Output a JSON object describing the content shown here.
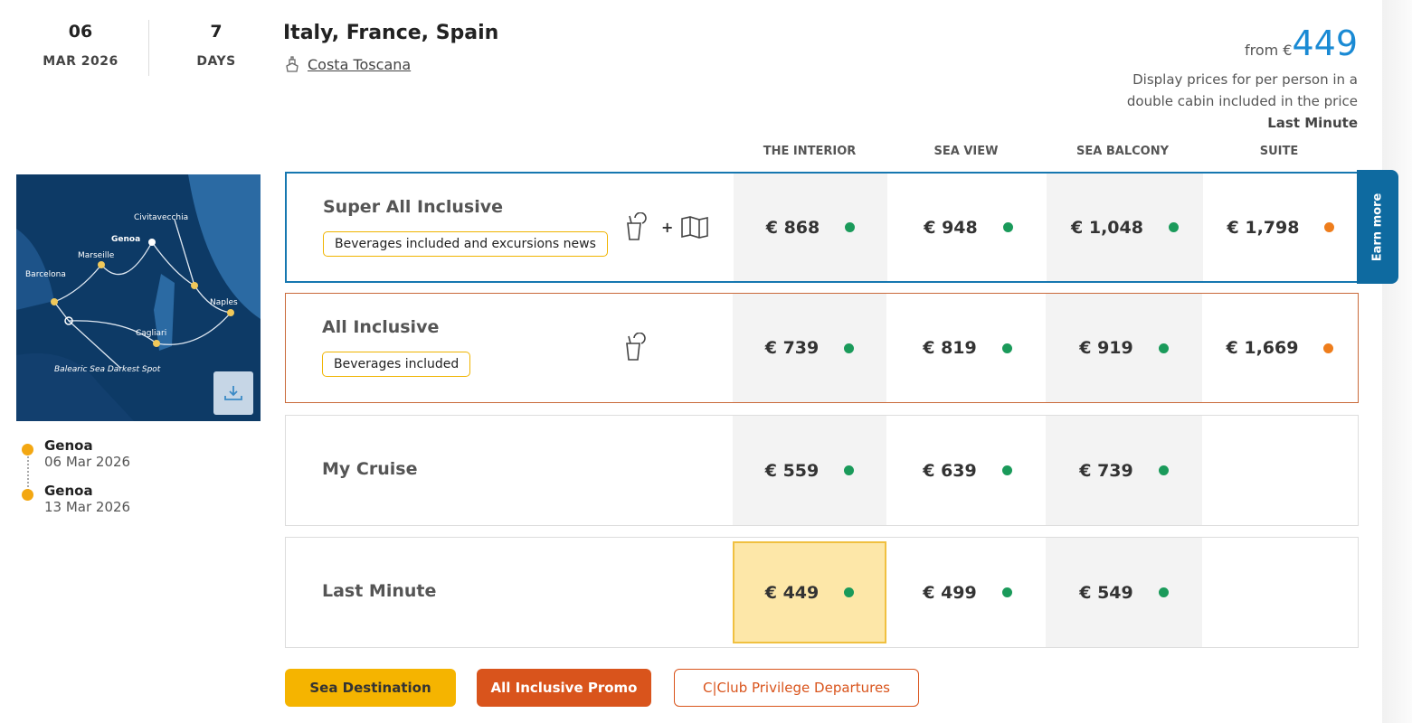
{
  "date": {
    "day": "06",
    "month_year": "MAR 2026"
  },
  "duration": {
    "value": "7",
    "unit": "DAYS"
  },
  "cruise": {
    "title": "Italy, France, Spain",
    "ship": "Costa Toscana",
    "ship_icon": "ship-icon"
  },
  "price_summary": {
    "from_label": "from €",
    "from_price": "449",
    "note_line1": "Display prices for per person in a",
    "note_line2": "double cabin included in the price",
    "fare_name": "Last Minute"
  },
  "columns": [
    "THE INTERIOR",
    "SEA VIEW",
    "SEA BALCONY",
    "SUITE"
  ],
  "map": {
    "ports": [
      "Civitavecchia",
      "Genoa",
      "Marseille",
      "Barcelona",
      "Naples",
      "Cagliari"
    ],
    "poi": "Balearic Sea Darkest Spot",
    "download_icon": "download-icon"
  },
  "itinerary": [
    {
      "port": "Genoa",
      "date": "06 Mar 2026"
    },
    {
      "port": "Genoa",
      "date": "13 Mar 2026"
    }
  ],
  "fares": [
    {
      "name": "Super All Inclusive",
      "tag": "Beverages included and excursions news",
      "icons": [
        "drinks-icon",
        "plus",
        "map-icon"
      ],
      "prices": [
        {
          "v": "€ 868",
          "s": "#1a9a5a"
        },
        {
          "v": "€ 948",
          "s": "#1a9a5a"
        },
        {
          "v": "€ 1,048",
          "s": "#1a9a5a"
        },
        {
          "v": "€ 1,798",
          "s": "#ee7d1c"
        }
      ]
    },
    {
      "name": "All Inclusive",
      "tag": "Beverages included",
      "icons": [
        "drinks-icon"
      ],
      "prices": [
        {
          "v": "€ 739",
          "s": "#1a9a5a"
        },
        {
          "v": "€ 819",
          "s": "#1a9a5a"
        },
        {
          "v": "€ 919",
          "s": "#1a9a5a"
        },
        {
          "v": "€ 1,669",
          "s": "#ee7d1c"
        }
      ]
    },
    {
      "name": "My Cruise",
      "prices": [
        {
          "v": "€ 559",
          "s": "#1a9a5a"
        },
        {
          "v": "€ 639",
          "s": "#1a9a5a"
        },
        {
          "v": "€ 739",
          "s": "#1a9a5a"
        }
      ]
    },
    {
      "name": "Last Minute",
      "prices": [
        {
          "v": "€ 449",
          "s": "#1a9a5a"
        },
        {
          "v": "€ 499",
          "s": "#1a9a5a"
        },
        {
          "v": "€ 549",
          "s": "#1a9a5a"
        }
      ]
    }
  ],
  "earn_more": "Earn more",
  "badges": [
    "Sea Destination",
    "All Inclusive Promo",
    "C|Club Privilege Departures"
  ],
  "colors": {
    "accent": "#1a8ad4",
    "available": "#1a9a5a",
    "limited": "#ee7d1c",
    "selected": "#fde7a8"
  }
}
